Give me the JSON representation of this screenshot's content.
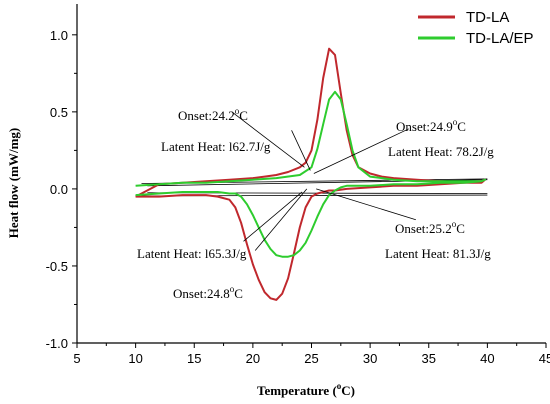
{
  "chart_data": {
    "type": "line",
    "xlabel_main": "Temperature (",
    "xlabel_sup": "o",
    "xlabel_end": "C)",
    "ylabel": "Heat flow (mW/mg)",
    "xlim": [
      5,
      45
    ],
    "ylim": [
      -1.0,
      1.2
    ],
    "xticks": [
      "5",
      "10",
      "15",
      "20",
      "25",
      "30",
      "35",
      "40",
      "45"
    ],
    "yticks": [
      "-1.0",
      "-0.5",
      "0.0",
      "0.5",
      "1.0"
    ],
    "legend_position": "top-right",
    "series": [
      {
        "name": "TD-LA",
        "color": "#c0282d",
        "x": [
          10,
          12,
          14,
          16,
          18,
          20,
          21,
          22,
          23,
          24,
          24.5,
          25,
          25.5,
          26,
          26.5,
          27,
          27.5,
          28,
          28.5,
          29,
          30,
          31,
          32,
          34,
          36,
          38,
          39.5,
          39.8,
          39.5,
          38,
          36,
          34,
          32,
          30,
          28,
          27,
          26.5,
          26,
          25.5,
          25,
          24.5,
          24,
          23.5,
          23,
          22.5,
          22,
          21.5,
          21,
          20.5,
          20,
          19.5,
          19,
          18.5,
          18,
          17,
          16,
          14,
          12,
          10
        ],
        "y": [
          -0.05,
          0.03,
          0.04,
          0.05,
          0.06,
          0.07,
          0.08,
          0.09,
          0.11,
          0.14,
          0.17,
          0.25,
          0.45,
          0.72,
          0.91,
          0.87,
          0.62,
          0.38,
          0.22,
          0.14,
          0.1,
          0.08,
          0.07,
          0.06,
          0.05,
          0.04,
          0.04,
          0.06,
          0.05,
          0.04,
          0.03,
          0.02,
          0.02,
          0.01,
          0.0,
          -0.01,
          -0.01,
          -0.02,
          -0.03,
          -0.05,
          -0.12,
          -0.25,
          -0.42,
          -0.58,
          -0.68,
          -0.72,
          -0.71,
          -0.67,
          -0.59,
          -0.49,
          -0.36,
          -0.22,
          -0.12,
          -0.07,
          -0.05,
          -0.04,
          -0.04,
          -0.05,
          -0.05
        ]
      },
      {
        "name": "TD-LA/EP",
        "color": "#2ecc2e",
        "x": [
          10,
          12,
          14,
          16,
          18,
          20,
          22,
          24,
          25,
          25.5,
          26,
          26.5,
          27,
          27.5,
          28,
          28.5,
          29,
          30,
          32,
          34,
          36,
          38,
          39.5,
          39.8,
          39.5,
          38,
          36,
          34,
          32,
          30,
          28,
          27.5,
          27,
          26.5,
          26,
          25.5,
          25,
          24.5,
          24,
          23.5,
          23,
          22.5,
          22,
          21.5,
          21,
          20.5,
          20,
          19.5,
          19,
          18.5,
          18,
          17,
          16,
          14,
          12,
          10
        ],
        "y": [
          0.02,
          0.03,
          0.04,
          0.04,
          0.05,
          0.06,
          0.07,
          0.09,
          0.14,
          0.26,
          0.42,
          0.58,
          0.63,
          0.58,
          0.42,
          0.25,
          0.14,
          0.08,
          0.06,
          0.05,
          0.05,
          0.05,
          0.05,
          0.06,
          0.05,
          0.04,
          0.04,
          0.03,
          0.03,
          0.02,
          0.02,
          0.01,
          -0.01,
          -0.04,
          -0.1,
          -0.18,
          -0.27,
          -0.35,
          -0.4,
          -0.43,
          -0.44,
          -0.44,
          -0.43,
          -0.39,
          -0.33,
          -0.25,
          -0.17,
          -0.1,
          -0.05,
          -0.03,
          -0.03,
          -0.02,
          -0.02,
          -0.02,
          -0.03,
          -0.04
        ]
      }
    ],
    "annotations": [
      {
        "main": "Onset:24.2",
        "sup": "o",
        "end": "C"
      },
      {
        "main": "Latent Heat: l62.7J/g"
      },
      {
        "main": "Onset:24.9",
        "sup": "o",
        "end": "C"
      },
      {
        "main": "Latent Heat: 78.2J/g"
      },
      {
        "main": "Onset:24.8",
        "sup": "o",
        "end": "C"
      },
      {
        "main": "Latent Heat: l65.3J/g"
      },
      {
        "main": "Onset:25.2",
        "sup": "o",
        "end": "C"
      },
      {
        "main": "Latent Heat: 81.3J/g"
      }
    ]
  }
}
